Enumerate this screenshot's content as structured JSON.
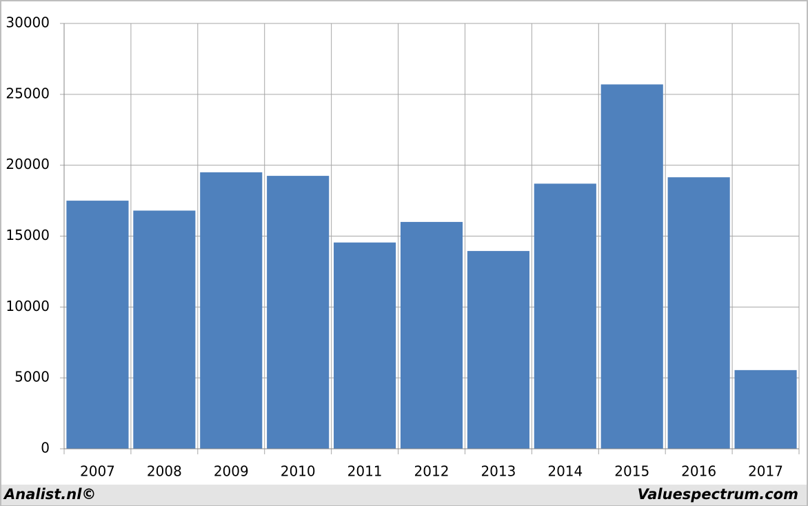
{
  "chart_data": {
    "type": "bar",
    "categories": [
      "2007",
      "2008",
      "2009",
      "2010",
      "2011",
      "2012",
      "2013",
      "2014",
      "2015",
      "2016",
      "2017"
    ],
    "values": [
      17500,
      16800,
      19500,
      19250,
      14550,
      16000,
      13950,
      18700,
      25700,
      19150,
      5550
    ],
    "color": "#4f81bd",
    "ylim": [
      0,
      30000
    ],
    "yticks": [
      0,
      5000,
      10000,
      15000,
      20000,
      25000,
      30000
    ],
    "grid": true,
    "annotations": [
      "Analist.nl©",
      "Valuespectrum.com"
    ]
  }
}
